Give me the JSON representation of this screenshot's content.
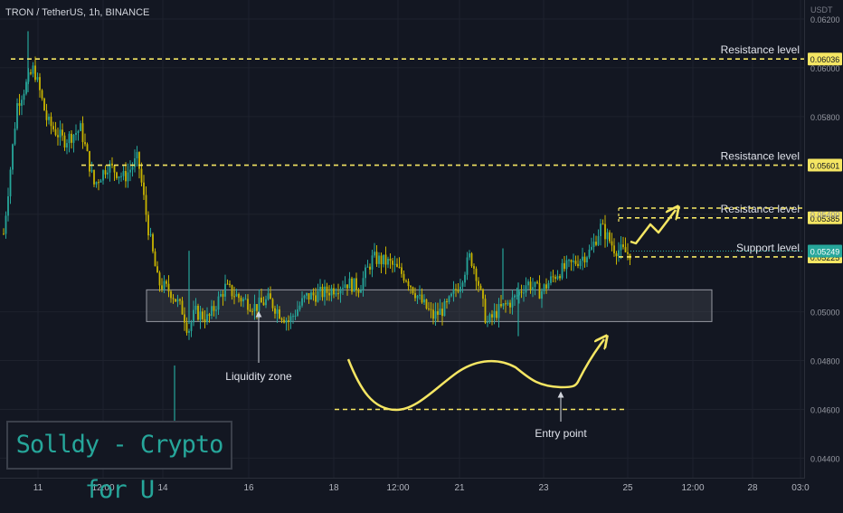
{
  "header": {
    "ticker_text": "TRON / TetherUS, 1h, BINANCE",
    "price_unit": "USDT"
  },
  "brand_label": "Solldy - Crypto for U",
  "colors": {
    "background": "#131722",
    "up": "#26a69a",
    "down": "#c8b400",
    "annotation": "#f5e663",
    "zone": "#4a4d56"
  },
  "chart_data": {
    "type": "candlestick",
    "y_axis": {
      "range": [
        0.0432,
        0.062
      ],
      "ticks": [
        {
          "value": 0.062,
          "label": "0.06200"
        },
        {
          "value": 0.06,
          "label": "0.06000"
        },
        {
          "value": 0.058,
          "label": "0.05800"
        },
        {
          "value": 0.054,
          "label": "0.05400"
        },
        {
          "value": 0.05,
          "label": "0.05000"
        },
        {
          "value": 0.048,
          "label": "0.04800"
        },
        {
          "value": 0.046,
          "label": "0.04600"
        },
        {
          "value": 0.044,
          "label": "0.04400"
        }
      ]
    },
    "x_ticks": [
      "11",
      "12:00",
      "14",
      "16",
      "18",
      "12:00",
      "21",
      "23",
      "25",
      "12:00",
      "28",
      "03:0"
    ],
    "levels": [
      {
        "label": "Resistance level",
        "value": 0.06036,
        "value_label": "0.06036"
      },
      {
        "label": "Resistance level",
        "value": 0.05601,
        "value_label": "0.05601"
      },
      {
        "label": "Resistance level",
        "value": 0.05385,
        "value_label": "0.05385"
      },
      {
        "label": "Support level",
        "value": 0.05225,
        "value_label": "0.05225"
      }
    ],
    "current_price": {
      "value": 0.05249,
      "label": "0.05249"
    },
    "liquidity_zone": {
      "label": "Liquidity zone",
      "top": 0.0509,
      "bottom": 0.0496
    },
    "entry_level": {
      "label": "Entry point",
      "value": 0.046
    },
    "price_path": [
      [
        0,
        0.0532
      ],
      [
        0.4,
        0.0585
      ],
      [
        0.9,
        0.06
      ],
      [
        1.3,
        0.0578
      ],
      [
        1.8,
        0.057
      ],
      [
        2.3,
        0.0575
      ],
      [
        2.7,
        0.0552
      ],
      [
        3.1,
        0.056
      ],
      [
        3.6,
        0.0555
      ],
      [
        4.0,
        0.0563
      ],
      [
        4.3,
        0.0535
      ],
      [
        4.6,
        0.0512
      ],
      [
        5.0,
        0.0508
      ],
      [
        5.35,
        0.05
      ],
      [
        5.5,
        0.0492
      ],
      [
        5.7,
        0.05
      ],
      [
        6.1,
        0.0497
      ],
      [
        6.6,
        0.051
      ],
      [
        7.0,
        0.0506
      ],
      [
        7.5,
        0.0502
      ],
      [
        7.9,
        0.0505
      ],
      [
        8.2,
        0.05
      ],
      [
        8.5,
        0.0496
      ],
      [
        9.0,
        0.0506
      ],
      [
        9.6,
        0.0508
      ],
      [
        10.2,
        0.0512
      ],
      [
        10.6,
        0.051
      ],
      [
        11.0,
        0.0522
      ],
      [
        11.5,
        0.052
      ],
      [
        12.0,
        0.0514
      ],
      [
        12.4,
        0.0505
      ],
      [
        12.8,
        0.0498
      ],
      [
        13.2,
        0.0502
      ],
      [
        13.6,
        0.0512
      ],
      [
        13.9,
        0.0523
      ],
      [
        14.1,
        0.0515
      ],
      [
        14.4,
        0.0495
      ],
      [
        14.7,
        0.05
      ],
      [
        15.2,
        0.0505
      ],
      [
        15.6,
        0.0512
      ],
      [
        16.0,
        0.0508
      ],
      [
        16.5,
        0.0516
      ],
      [
        17.0,
        0.052
      ],
      [
        17.5,
        0.0525
      ],
      [
        17.8,
        0.0535
      ],
      [
        18.2,
        0.0526
      ],
      [
        18.6,
        0.0524
      ]
    ]
  }
}
